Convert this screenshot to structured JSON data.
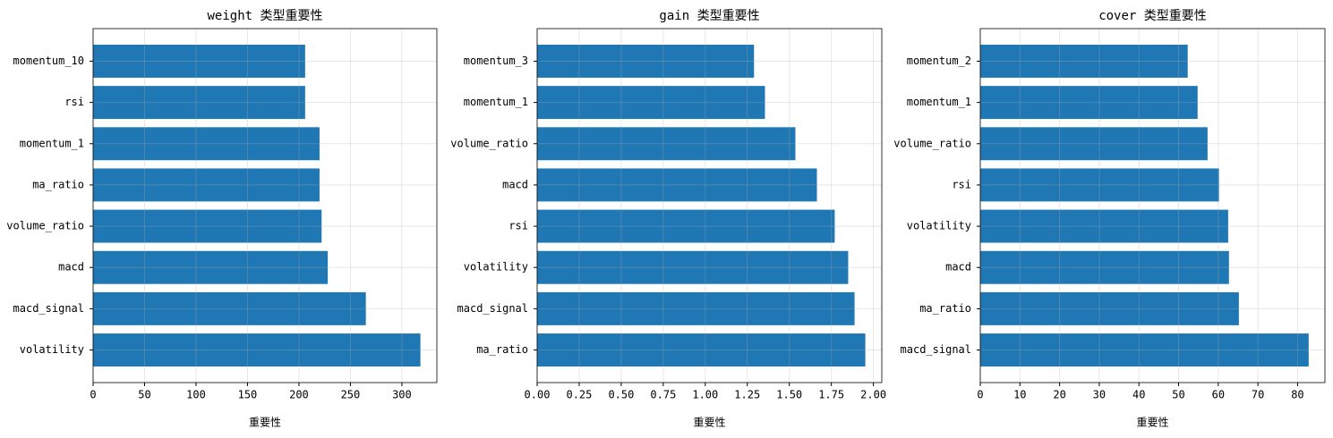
{
  "chart_data": [
    {
      "type": "barh",
      "title": "weight 类型重要性",
      "xlabel": "重要性",
      "categories": [
        "momentum_10",
        "rsi",
        "momentum_1",
        "ma_ratio",
        "volume_ratio",
        "macd",
        "macd_signal",
        "volatility"
      ],
      "values": [
        206,
        206,
        220,
        220,
        222,
        228,
        265,
        318
      ],
      "color": "#1f77b4",
      "xlim": [
        0,
        334
      ],
      "xticks": [
        0,
        50,
        100,
        150,
        200,
        250,
        300
      ],
      "grid": true
    },
    {
      "type": "barh",
      "title": "gain 类型重要性",
      "xlabel": "重要性",
      "categories": [
        "momentum_3",
        "momentum_1",
        "volume_ratio",
        "macd",
        "rsi",
        "volatility",
        "macd_signal",
        "ma_ratio"
      ],
      "values": [
        1.29,
        1.355,
        1.536,
        1.664,
        1.77,
        1.85,
        1.888,
        1.952
      ],
      "color": "#1f77b4",
      "xlim": [
        0,
        2.05
      ],
      "xticks": [
        {
          "value": 0,
          "label": "0.00"
        },
        0.25,
        {
          "value": 0.5,
          "label": "0.50"
        },
        0.75,
        {
          "value": 1,
          "label": "1.00"
        },
        1.25,
        {
          "value": 1.5,
          "label": "1.50"
        },
        1.75,
        {
          "value": 2,
          "label": "2.00"
        }
      ],
      "grid": true
    },
    {
      "type": "barh",
      "title": "cover 类型重要性",
      "xlabel": "重要性",
      "categories": [
        "momentum_2",
        "momentum_1",
        "volume_ratio",
        "rsi",
        "volatility",
        "macd",
        "ma_ratio",
        "macd_signal"
      ],
      "values": [
        52.3,
        54.8,
        57.3,
        60.2,
        62.5,
        62.7,
        65.2,
        82.8
      ],
      "color": "#1f77b4",
      "xlim": [
        0,
        86.9
      ],
      "xticks": [
        0,
        10,
        20,
        30,
        40,
        50,
        60,
        70,
        80
      ],
      "grid": true
    }
  ]
}
